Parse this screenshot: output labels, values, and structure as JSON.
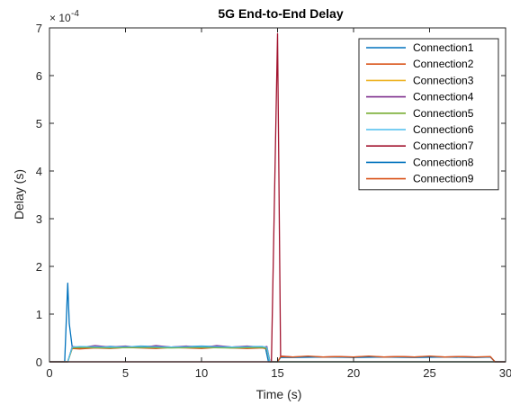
{
  "chart_data": {
    "type": "line",
    "title": "5G End-to-End Delay",
    "xlabel": "Time (s)",
    "ylabel": "Delay (s)",
    "y_exponent_label": "× 10",
    "y_exponent_power": "-4",
    "xlim": [
      0,
      30
    ],
    "ylim": [
      0,
      7
    ],
    "xticks": [
      0,
      5,
      10,
      15,
      20,
      25,
      30
    ],
    "yticks": [
      0,
      1,
      2,
      3,
      4,
      5,
      6,
      7
    ],
    "grid": false,
    "legend_position": "top-right",
    "series": [
      {
        "name": "Connection1",
        "color": "#0072BD",
        "x": [
          0,
          1.0,
          1.2,
          1.3,
          1.5,
          2,
          3,
          4,
          5,
          6,
          7,
          8,
          9,
          10,
          11,
          12,
          13,
          14,
          14.2,
          14.4,
          15,
          30
        ],
        "y": [
          0,
          0,
          1.65,
          0.8,
          0.3,
          0.3,
          0.31,
          0.32,
          0.31,
          0.33,
          0.32,
          0.31,
          0.32,
          0.33,
          0.32,
          0.31,
          0.32,
          0.32,
          0.3,
          0,
          0,
          0
        ]
      },
      {
        "name": "Connection2",
        "color": "#D95319",
        "x": [
          0,
          1.2,
          1.5,
          2,
          3,
          4,
          5,
          6,
          7,
          8,
          9,
          10,
          11,
          12,
          13,
          14,
          14.3,
          14.5,
          30
        ],
        "y": [
          0,
          0,
          0.28,
          0.27,
          0.29,
          0.28,
          0.3,
          0.29,
          0.28,
          0.3,
          0.29,
          0.28,
          0.3,
          0.29,
          0.28,
          0.29,
          0.27,
          0,
          0
        ]
      },
      {
        "name": "Connection3",
        "color": "#EDB120",
        "x": [
          0,
          1.2,
          1.5,
          2,
          4,
          6,
          8,
          10,
          12,
          14,
          14.3,
          14.5,
          30
        ],
        "y": [
          0,
          0,
          0.3,
          0.31,
          0.3,
          0.32,
          0.3,
          0.31,
          0.3,
          0.31,
          0.29,
          0,
          0
        ]
      },
      {
        "name": "Connection4",
        "color": "#7E2F8E",
        "x": [
          0,
          1.2,
          1.5,
          2,
          3,
          4,
          5,
          6,
          7,
          8,
          9,
          10,
          11,
          12,
          13,
          14,
          14.3,
          14.5,
          30
        ],
        "y": [
          0,
          0,
          0.32,
          0.3,
          0.34,
          0.31,
          0.33,
          0.3,
          0.34,
          0.31,
          0.33,
          0.3,
          0.34,
          0.31,
          0.33,
          0.3,
          0.32,
          0,
          0
        ]
      },
      {
        "name": "Connection5",
        "color": "#77AC30",
        "x": [
          0,
          1.2,
          1.5,
          2,
          4,
          6,
          8,
          10,
          12,
          14,
          14.3,
          14.5,
          30
        ],
        "y": [
          0,
          0,
          0.29,
          0.3,
          0.29,
          0.3,
          0.29,
          0.3,
          0.29,
          0.3,
          0.28,
          0,
          0
        ]
      },
      {
        "name": "Connection6",
        "color": "#4DBEEE",
        "x": [
          0,
          1.2,
          1.5,
          2,
          4,
          6,
          8,
          10,
          12,
          14,
          14.3,
          14.5,
          30
        ],
        "y": [
          0,
          0,
          0.31,
          0.32,
          0.31,
          0.32,
          0.31,
          0.32,
          0.31,
          0.32,
          0.3,
          0,
          0
        ]
      },
      {
        "name": "Connection7",
        "color": "#A2142F",
        "x": [
          0,
          14.6,
          15.0,
          15.2,
          16,
          17,
          18,
          19,
          20,
          21,
          22,
          23,
          24,
          25,
          26,
          27,
          28,
          29,
          29.3,
          30
        ],
        "y": [
          0,
          0,
          6.88,
          0.12,
          0.1,
          0.11,
          0.1,
          0.11,
          0.1,
          0.11,
          0.1,
          0.11,
          0.1,
          0.11,
          0.1,
          0.11,
          0.1,
          0.1,
          0,
          0
        ]
      },
      {
        "name": "Connection8",
        "color": "#0072BD",
        "x": [
          0,
          15.0,
          15.2,
          16,
          18,
          20,
          22,
          24,
          26,
          28,
          29,
          29.3,
          30
        ],
        "y": [
          0,
          0,
          0.09,
          0.09,
          0.1,
          0.09,
          0.1,
          0.09,
          0.1,
          0.09,
          0.1,
          0,
          0
        ]
      },
      {
        "name": "Connection9",
        "color": "#D95319",
        "x": [
          0,
          15.0,
          15.2,
          16,
          17,
          18,
          19,
          20,
          21,
          22,
          23,
          24,
          25,
          26,
          27,
          28,
          29,
          29.3,
          30
        ],
        "y": [
          0,
          0,
          0.11,
          0.1,
          0.12,
          0.1,
          0.11,
          0.1,
          0.12,
          0.1,
          0.11,
          0.1,
          0.12,
          0.1,
          0.11,
          0.1,
          0.11,
          0,
          0
        ]
      }
    ]
  }
}
